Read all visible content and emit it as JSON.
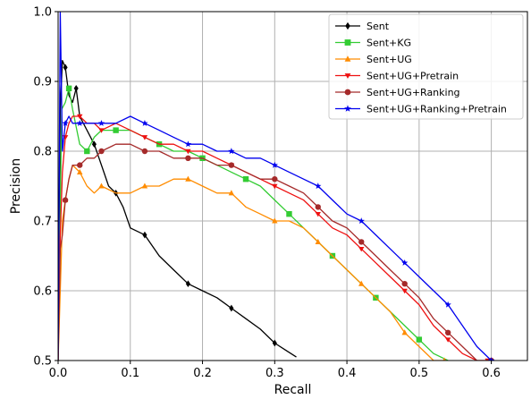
{
  "chart_data": {
    "type": "line",
    "xlabel": "Recall",
    "ylabel": "Precision",
    "xlim": [
      0,
      0.65
    ],
    "ylim": [
      0.5,
      1.0
    ],
    "xticks": [
      0,
      0.1,
      0.2,
      0.3,
      0.4,
      0.5,
      0.6
    ],
    "xtick_labels": [
      "0.0",
      "0.1",
      "0.2",
      "0.3",
      "0.4",
      "0.5",
      "0.6"
    ],
    "yticks": [
      0.5,
      0.6,
      0.7,
      0.8,
      0.9,
      1.0
    ],
    "ytick_labels": [
      "0.5",
      "0.6",
      "0.7",
      "0.8",
      "0.9",
      "1.0"
    ],
    "grid": true,
    "legend_position": "top-right",
    "series": [
      {
        "name": "Sent",
        "color": "#000000",
        "marker": "diamond",
        "x": [
          0.0,
          0.003,
          0.006,
          0.01,
          0.015,
          0.02,
          0.025,
          0.03,
          0.04,
          0.05,
          0.06,
          0.07,
          0.08,
          0.09,
          0.1,
          0.12,
          0.14,
          0.16,
          0.18,
          0.2,
          0.22,
          0.24,
          0.26,
          0.28,
          0.3,
          0.315,
          0.33
        ],
        "y": [
          0.5,
          0.86,
          0.93,
          0.92,
          0.88,
          0.87,
          0.89,
          0.85,
          0.83,
          0.81,
          0.78,
          0.75,
          0.74,
          0.72,
          0.69,
          0.68,
          0.65,
          0.63,
          0.61,
          0.6,
          0.59,
          0.575,
          0.56,
          0.545,
          0.525,
          0.515,
          0.505
        ]
      },
      {
        "name": "Sent+KG",
        "color": "#33cc33",
        "marker": "square",
        "x": [
          0.0,
          0.005,
          0.01,
          0.015,
          0.02,
          0.03,
          0.04,
          0.05,
          0.06,
          0.08,
          0.1,
          0.12,
          0.14,
          0.16,
          0.18,
          0.2,
          0.22,
          0.24,
          0.26,
          0.28,
          0.3,
          0.32,
          0.34,
          0.36,
          0.38,
          0.4,
          0.42,
          0.44,
          0.46,
          0.48,
          0.5,
          0.52,
          0.54
        ],
        "y": [
          0.5,
          0.86,
          0.87,
          0.89,
          0.86,
          0.81,
          0.8,
          0.82,
          0.83,
          0.83,
          0.83,
          0.82,
          0.81,
          0.8,
          0.8,
          0.79,
          0.78,
          0.77,
          0.76,
          0.75,
          0.73,
          0.71,
          0.69,
          0.67,
          0.65,
          0.63,
          0.61,
          0.59,
          0.57,
          0.55,
          0.53,
          0.51,
          0.5
        ]
      },
      {
        "name": "Sent+UG",
        "color": "#ff8c00",
        "marker": "triangle",
        "x": [
          0.0,
          0.003,
          0.006,
          0.01,
          0.015,
          0.02,
          0.03,
          0.04,
          0.05,
          0.06,
          0.08,
          0.1,
          0.12,
          0.14,
          0.16,
          0.18,
          0.2,
          0.22,
          0.24,
          0.26,
          0.28,
          0.3,
          0.32,
          0.34,
          0.36,
          0.38,
          0.4,
          0.42,
          0.44,
          0.46,
          0.48,
          0.5,
          0.52,
          0.535
        ],
        "y": [
          0.5,
          0.6,
          0.7,
          0.73,
          0.76,
          0.78,
          0.77,
          0.75,
          0.74,
          0.75,
          0.74,
          0.74,
          0.75,
          0.75,
          0.76,
          0.76,
          0.75,
          0.74,
          0.74,
          0.72,
          0.71,
          0.7,
          0.7,
          0.69,
          0.67,
          0.65,
          0.63,
          0.61,
          0.59,
          0.57,
          0.54,
          0.52,
          0.5,
          0.5
        ]
      },
      {
        "name": "Sent+UG+Pretrain",
        "color": "#ee1111",
        "marker": "tri-down",
        "x": [
          0.0,
          0.003,
          0.006,
          0.01,
          0.015,
          0.02,
          0.03,
          0.04,
          0.05,
          0.06,
          0.08,
          0.1,
          0.12,
          0.14,
          0.16,
          0.18,
          0.2,
          0.22,
          0.24,
          0.26,
          0.28,
          0.3,
          0.32,
          0.34,
          0.36,
          0.38,
          0.4,
          0.42,
          0.44,
          0.46,
          0.48,
          0.5,
          0.52,
          0.54,
          0.56,
          0.58,
          0.595
        ],
        "y": [
          0.5,
          0.68,
          0.77,
          0.82,
          0.84,
          0.85,
          0.85,
          0.84,
          0.84,
          0.83,
          0.84,
          0.83,
          0.82,
          0.81,
          0.81,
          0.8,
          0.8,
          0.79,
          0.78,
          0.77,
          0.76,
          0.75,
          0.74,
          0.73,
          0.71,
          0.69,
          0.68,
          0.66,
          0.64,
          0.62,
          0.6,
          0.58,
          0.55,
          0.53,
          0.51,
          0.5,
          0.5
        ]
      },
      {
        "name": "Sent+UG+Ranking",
        "color": "#a52a2a",
        "marker": "circle",
        "x": [
          0.0,
          0.003,
          0.006,
          0.01,
          0.015,
          0.02,
          0.03,
          0.04,
          0.05,
          0.06,
          0.08,
          0.1,
          0.12,
          0.14,
          0.16,
          0.18,
          0.2,
          0.22,
          0.24,
          0.26,
          0.28,
          0.3,
          0.32,
          0.34,
          0.36,
          0.38,
          0.4,
          0.42,
          0.44,
          0.46,
          0.48,
          0.5,
          0.52,
          0.54,
          0.56,
          0.58,
          0.6
        ],
        "y": [
          0.5,
          0.66,
          0.68,
          0.73,
          0.76,
          0.78,
          0.78,
          0.79,
          0.79,
          0.8,
          0.81,
          0.81,
          0.8,
          0.8,
          0.79,
          0.79,
          0.79,
          0.78,
          0.78,
          0.77,
          0.76,
          0.76,
          0.75,
          0.74,
          0.72,
          0.7,
          0.69,
          0.67,
          0.65,
          0.63,
          0.61,
          0.59,
          0.56,
          0.54,
          0.52,
          0.5,
          0.5
        ]
      },
      {
        "name": "Sent+UG+Ranking+Pretrain",
        "color": "#0000ee",
        "marker": "star",
        "x": [
          0.0,
          0.003,
          0.006,
          0.01,
          0.015,
          0.02,
          0.03,
          0.04,
          0.05,
          0.06,
          0.08,
          0.1,
          0.12,
          0.14,
          0.16,
          0.18,
          0.2,
          0.22,
          0.24,
          0.26,
          0.28,
          0.3,
          0.32,
          0.34,
          0.36,
          0.38,
          0.4,
          0.42,
          0.44,
          0.46,
          0.48,
          0.5,
          0.52,
          0.54,
          0.56,
          0.58,
          0.6
        ],
        "y": [
          0.5,
          1.0,
          0.8,
          0.84,
          0.85,
          0.84,
          0.84,
          0.84,
          0.84,
          0.84,
          0.84,
          0.85,
          0.84,
          0.83,
          0.82,
          0.81,
          0.81,
          0.8,
          0.8,
          0.79,
          0.79,
          0.78,
          0.77,
          0.76,
          0.75,
          0.73,
          0.71,
          0.7,
          0.68,
          0.66,
          0.64,
          0.62,
          0.6,
          0.58,
          0.55,
          0.52,
          0.5
        ]
      }
    ]
  }
}
